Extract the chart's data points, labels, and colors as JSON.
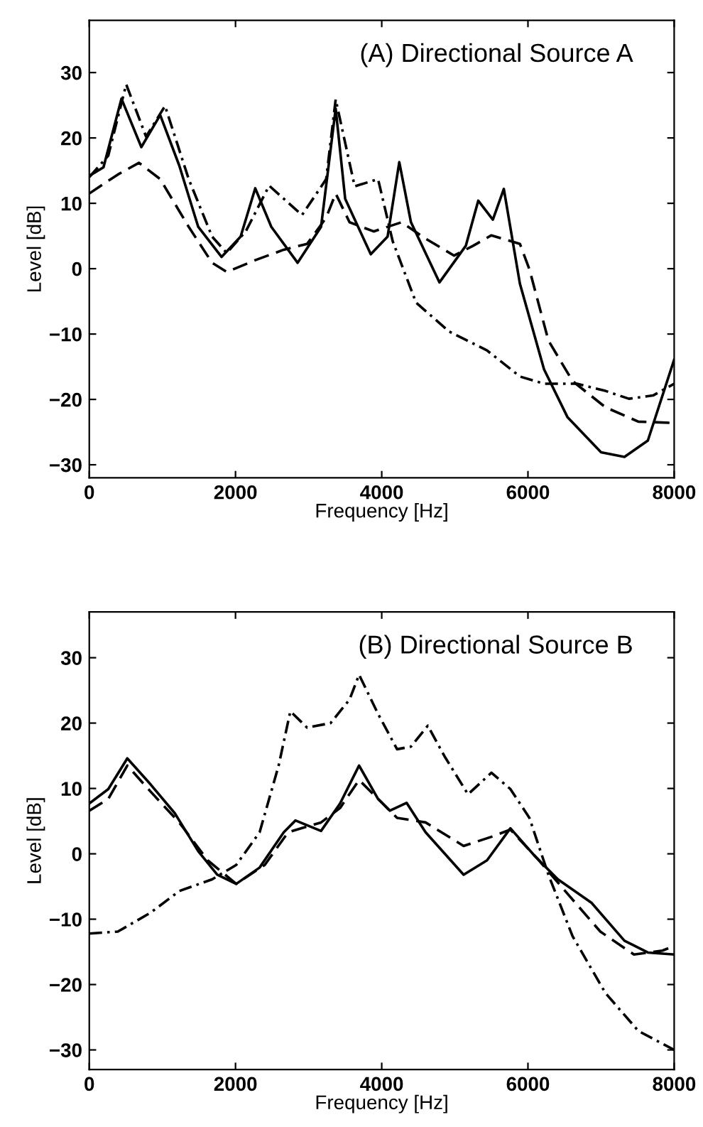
{
  "chart_data": [
    {
      "type": "line",
      "title": "(A) Directional Source A",
      "xlabel": "Frequency [Hz]",
      "ylabel": "Level [dB]",
      "xlim": [
        0,
        8000
      ],
      "ylim": [
        -32,
        38
      ],
      "xticks": [
        0,
        2000,
        4000,
        6000,
        8000
      ],
      "yticks": [
        -30,
        -20,
        -10,
        0,
        10,
        20,
        30
      ],
      "marker": "none",
      "series": [
        {
          "color": "#000000",
          "line_style": "solid",
          "x": [
            0,
            194,
            440,
            712,
            970,
            1230,
            1490,
            1810,
            2070,
            2270,
            2490,
            2850,
            3170,
            3370,
            3500,
            3850,
            4080,
            4240,
            4400,
            4790,
            5150,
            5320,
            5520,
            5670,
            5890,
            6220,
            6540,
            7000,
            7320,
            7640,
            8000
          ],
          "values": [
            14.2,
            15.5,
            26,
            18.6,
            23.5,
            15.8,
            6.4,
            1.8,
            4.9,
            12.3,
            6.4,
            0.9,
            6.4,
            24.5,
            10.7,
            2.2,
            4.9,
            16.3,
            7.1,
            -2.1,
            3.5,
            10.4,
            7.5,
            12.2,
            -2.3,
            -15.4,
            -22.7,
            -28.1,
            -28.8,
            -26.3,
            -13.9
          ]
        },
        {
          "color": "#000000",
          "line_style": "dashed",
          "x": [
            0,
            390,
            680,
            970,
            1360,
            1680,
            1880,
            2270,
            2660,
            2980,
            3240,
            3370,
            3560,
            3890,
            4270,
            4600,
            4990,
            5250,
            5500,
            5890,
            6020,
            6280,
            6610,
            7060,
            7510,
            8000
          ],
          "values": [
            11.5,
            14.4,
            16.2,
            13.7,
            6.4,
            0.9,
            -0.5,
            1.3,
            2.9,
            3.8,
            7.8,
            11.5,
            7.1,
            5.7,
            7.1,
            4.6,
            2.0,
            3.5,
            5.1,
            3.8,
            -0.1,
            -11,
            -17.2,
            -21.2,
            -23.4,
            -23.6
          ]
        },
        {
          "color": "#000000",
          "line_style": "dashdot",
          "x": [
            0,
            260,
            505,
            777,
            1036,
            1360,
            1680,
            1880,
            2140,
            2460,
            2910,
            3240,
            3370,
            3630,
            3950,
            4150,
            4470,
            4920,
            5440,
            5890,
            6220,
            6670,
            7060,
            7380,
            7710,
            8000
          ],
          "values": [
            14,
            17.3,
            28.2,
            20.2,
            24.9,
            13.7,
            4.9,
            2.4,
            5.7,
            12.7,
            8.2,
            13.7,
            25.9,
            12.6,
            13.7,
            4.2,
            -5.2,
            -9.6,
            -12.5,
            -16.5,
            -17.6,
            -17.6,
            -18.7,
            -19.9,
            -19.4,
            -17.6
          ]
        }
      ]
    },
    {
      "type": "line",
      "title": "(B) Directional Source B",
      "xlabel": "Frequency [Hz]",
      "ylabel": "Level [dB]",
      "xlim": [
        0,
        8000
      ],
      "ylim": [
        -33,
        37
      ],
      "xticks": [
        0,
        2000,
        4000,
        6000,
        8000
      ],
      "yticks": [
        -30,
        -20,
        -10,
        0,
        10,
        20,
        30
      ],
      "marker": "none",
      "series": [
        {
          "color": "#000000",
          "line_style": "solid",
          "x": [
            0,
            260,
            520,
            840,
            1170,
            1490,
            1750,
            2010,
            2330,
            2660,
            2820,
            3170,
            3430,
            3690,
            3950,
            4110,
            4340,
            4600,
            5120,
            5440,
            5760,
            6090,
            6410,
            6870,
            7320,
            7640,
            8000
          ],
          "values": [
            7.7,
            9.9,
            14.6,
            10.6,
            6.2,
            0.4,
            -3.2,
            -4.6,
            -2.1,
            3.3,
            5.1,
            3.5,
            7.7,
            13.5,
            8.4,
            6.6,
            7.8,
            3.3,
            -3.2,
            -1.0,
            3.9,
            -0.3,
            -3.9,
            -7.5,
            -13.3,
            -15.1,
            -15.4
          ]
        },
        {
          "color": "#000000",
          "line_style": "dashed",
          "x": [
            0,
            260,
            520,
            840,
            1230,
            1620,
            2010,
            2400,
            2720,
            3170,
            3430,
            3690,
            3950,
            4210,
            4600,
            5120,
            5500,
            5760,
            6150,
            6540,
            6990,
            7450,
            7840,
            8000
          ],
          "values": [
            6.6,
            8.4,
            13.5,
            9.5,
            4.8,
            -1.0,
            -4.6,
            -1.7,
            3.3,
            4.8,
            7.0,
            11.3,
            8.4,
            5.5,
            4.8,
            1.2,
            2.6,
            3.7,
            -1.0,
            -6.1,
            -11.9,
            -15.4,
            -14.8,
            -14.1
          ]
        },
        {
          "color": "#000000",
          "line_style": "dashdot",
          "x": [
            0,
            390,
            840,
            1230,
            1680,
            2010,
            2330,
            2590,
            2750,
            2980,
            3300,
            3560,
            3690,
            3950,
            4210,
            4400,
            4630,
            4860,
            5180,
            5500,
            5760,
            6020,
            6280,
            6610,
            7060,
            7510,
            8000
          ],
          "values": [
            -12.2,
            -11.9,
            -9.0,
            -5.7,
            -3.9,
            -1.7,
            3.3,
            13.5,
            21.8,
            19.3,
            20.0,
            23.6,
            27.4,
            21.4,
            16.0,
            16.4,
            19.6,
            14.9,
            9.1,
            12.4,
            9.9,
            5.5,
            -3.2,
            -12.6,
            -21.3,
            -27.1,
            -30.0
          ]
        }
      ]
    }
  ]
}
